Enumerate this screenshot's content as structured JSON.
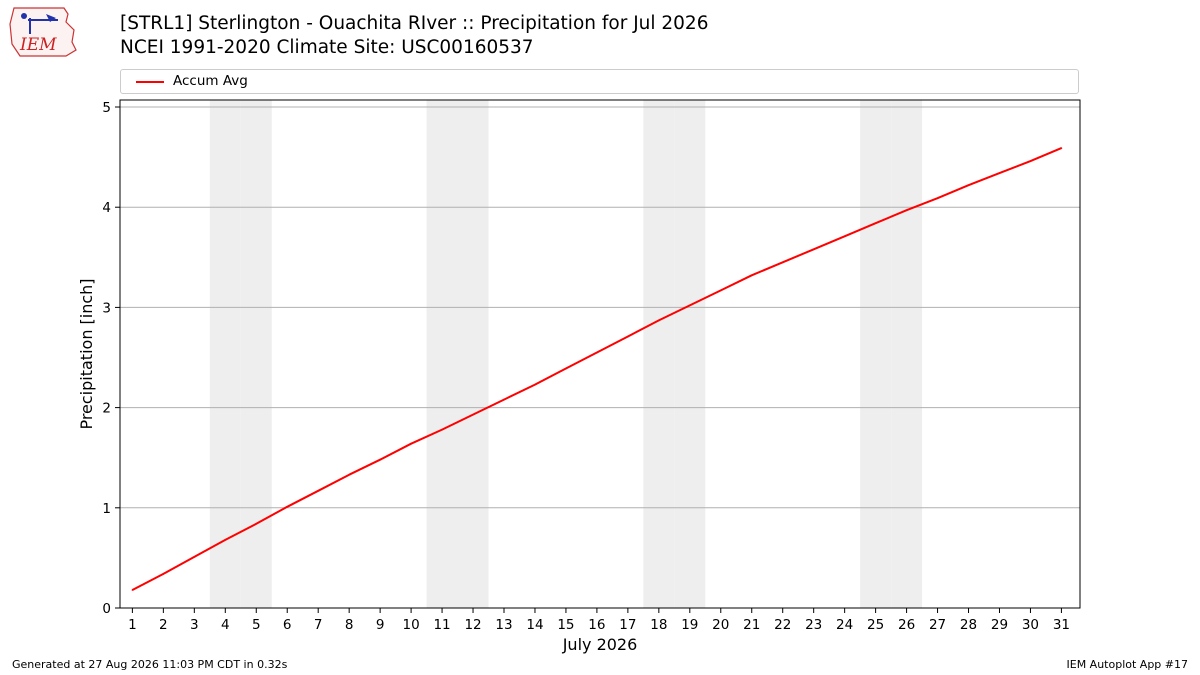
{
  "title_line1": "[STRL1] Sterlington - Ouachita RIver :: Precipitation for Jul 2026",
  "title_line2": "NCEI 1991-2020 Climate Site: USC00160537",
  "logo_text": "IEM",
  "footer_left": "Generated at 27 Aug 2026 11:03 PM CDT in 0.32s",
  "footer_right": "IEM Autoplot App #17",
  "colors": {
    "line": "#ff0000",
    "weekend_band": "#eeeeee",
    "grid": "#b0b0b0"
  },
  "chart_data": {
    "type": "line",
    "xlabel": "July 2026",
    "ylabel": "Precipitation [inch]",
    "x": [
      1,
      2,
      3,
      4,
      5,
      6,
      7,
      8,
      9,
      10,
      11,
      12,
      13,
      14,
      15,
      16,
      17,
      18,
      19,
      20,
      21,
      22,
      23,
      24,
      25,
      26,
      27,
      28,
      29,
      30,
      31
    ],
    "series": [
      {
        "name": "Accum Avg",
        "color": "#ff0000",
        "values": [
          0.18,
          0.34,
          0.51,
          0.68,
          0.84,
          1.01,
          1.17,
          1.33,
          1.48,
          1.64,
          1.78,
          1.93,
          2.08,
          2.23,
          2.39,
          2.55,
          2.71,
          2.87,
          3.02,
          3.17,
          3.32,
          3.45,
          3.58,
          3.71,
          3.84,
          3.97,
          4.09,
          4.22,
          4.34,
          4.46,
          4.59
        ]
      }
    ],
    "weekend_days": [
      4,
      5,
      11,
      12,
      18,
      19,
      25,
      26
    ],
    "xlim": [
      0.6,
      31.6
    ],
    "ylim": [
      0,
      5.07
    ],
    "yticks": [
      0,
      1,
      2,
      3,
      4,
      5
    ],
    "grid": "horizontal",
    "legend_position": "top"
  }
}
